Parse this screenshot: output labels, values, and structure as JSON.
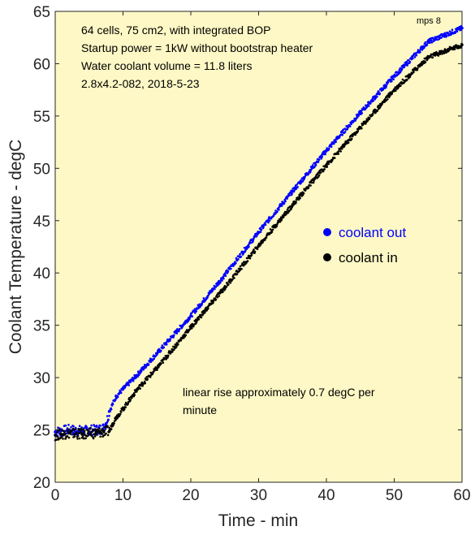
{
  "chart_data": {
    "type": "scatter",
    "title": "",
    "xlabel": "Time - min",
    "ylabel": "Coolant Temperature - degC",
    "xlim": [
      0,
      60
    ],
    "ylim": [
      20,
      65
    ],
    "xticks": [
      "0",
      "10",
      "20",
      "30",
      "40",
      "50",
      "60"
    ],
    "yticks": [
      "20",
      "25",
      "30",
      "35",
      "40",
      "45",
      "50",
      "55",
      "60",
      "65"
    ],
    "grid": false,
    "background": "#fdf8c5",
    "annotations": {
      "info_lines": [
        "64 cells, 75 cm2, with integrated BOP",
        "Startup power = 1kW without bootstrap heater",
        "Water coolant volume = 11.8 liters",
        "2.8x4.2-082,  2018-5-23"
      ],
      "corner_label": "mps 8",
      "rise_note_lines": [
        "linear rise approximately 0.7 degC per",
        "minute"
      ]
    },
    "legend_position": "center-right",
    "series": [
      {
        "name": "coolant out",
        "color": "#0000ff",
        "x": [
          0,
          2,
          4,
          6,
          7,
          7.5,
          8,
          9,
          10,
          12,
          15,
          20,
          25,
          30,
          35,
          40,
          45,
          50,
          55,
          60
        ],
        "y": [
          24.8,
          25.0,
          24.9,
          25.0,
          25.1,
          25.6,
          26.8,
          28.2,
          28.9,
          30.2,
          32.3,
          35.9,
          39.8,
          43.9,
          47.8,
          51.7,
          55.3,
          58.8,
          62.1,
          63.4
        ]
      },
      {
        "name": "coolant in",
        "color": "#000000",
        "x": [
          0,
          2,
          4,
          6,
          8,
          8.5,
          9,
          10,
          12,
          15,
          20,
          25,
          30,
          35,
          40,
          45,
          50,
          55,
          60
        ],
        "y": [
          24.5,
          24.7,
          24.6,
          24.7,
          24.9,
          25.6,
          26.2,
          27.0,
          28.8,
          30.9,
          34.8,
          38.6,
          42.6,
          46.5,
          50.3,
          53.9,
          57.5,
          60.6,
          61.8
        ]
      }
    ]
  }
}
